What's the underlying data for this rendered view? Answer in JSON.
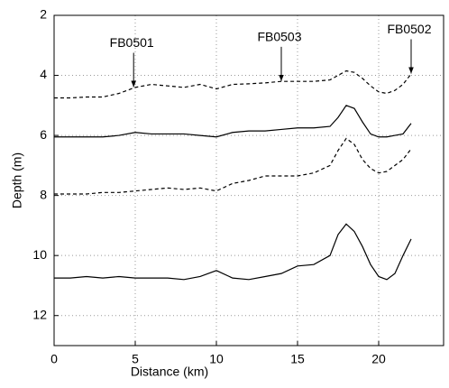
{
  "chart_data": {
    "type": "line",
    "x_label": "Distance (km)",
    "y_label": "Depth (m)",
    "x": [
      0,
      1,
      2,
      3,
      4,
      5,
      6,
      7,
      8,
      9,
      10,
      11,
      12,
      13,
      14,
      15,
      16,
      17,
      17.5,
      18,
      18.5,
      19,
      19.5,
      20,
      20.5,
      21,
      21.5,
      22
    ],
    "series": [
      {
        "color": "#000000",
        "dash": "dashed",
        "values": [
          4.75,
          4.75,
          4.72,
          4.72,
          4.6,
          4.4,
          4.3,
          4.35,
          4.4,
          4.3,
          4.45,
          4.3,
          4.28,
          4.25,
          4.2,
          4.2,
          4.2,
          4.15,
          4.0,
          3.85,
          3.9,
          4.1,
          4.35,
          4.55,
          4.6,
          4.5,
          4.3,
          3.95
        ]
      },
      {
        "color": "#000000",
        "dash": "solid",
        "values": [
          6.05,
          6.05,
          6.05,
          6.05,
          6.0,
          5.9,
          5.95,
          5.95,
          5.95,
          6.0,
          6.05,
          5.9,
          5.85,
          5.85,
          5.8,
          5.75,
          5.75,
          5.7,
          5.4,
          5.0,
          5.1,
          5.55,
          5.95,
          6.05,
          6.05,
          6.0,
          5.95,
          5.6
        ]
      },
      {
        "color": "#000000",
        "dash": "dashed",
        "values": [
          7.95,
          7.95,
          7.95,
          7.9,
          7.9,
          7.85,
          7.8,
          7.75,
          7.8,
          7.75,
          7.85,
          7.6,
          7.5,
          7.35,
          7.35,
          7.35,
          7.25,
          7.0,
          6.5,
          6.1,
          6.3,
          6.8,
          7.1,
          7.25,
          7.2,
          7.0,
          6.8,
          6.45
        ]
      },
      {
        "color": "#000000",
        "dash": "solid",
        "values": [
          10.75,
          10.75,
          10.7,
          10.75,
          10.7,
          10.75,
          10.75,
          10.75,
          10.8,
          10.7,
          10.5,
          10.75,
          10.8,
          10.7,
          10.6,
          10.35,
          10.3,
          10.0,
          9.3,
          8.95,
          9.2,
          9.7,
          10.3,
          10.7,
          10.8,
          10.6,
          10.0,
          9.45
        ]
      }
    ],
    "annotations": [
      {
        "text": "FB0501",
        "x": 4.9,
        "y": 4.45
      },
      {
        "text": "FB0503",
        "x": 14,
        "y": 4.25
      },
      {
        "text": "FB0502",
        "x": 22,
        "y": 4.0
      }
    ],
    "xlim": [
      0,
      24
    ],
    "xticks": [
      0,
      5,
      10,
      15,
      20
    ],
    "ylim": [
      2,
      13
    ],
    "yticks": [
      2,
      4,
      6,
      8,
      10,
      12
    ],
    "y_reversed": true,
    "grid": true
  }
}
